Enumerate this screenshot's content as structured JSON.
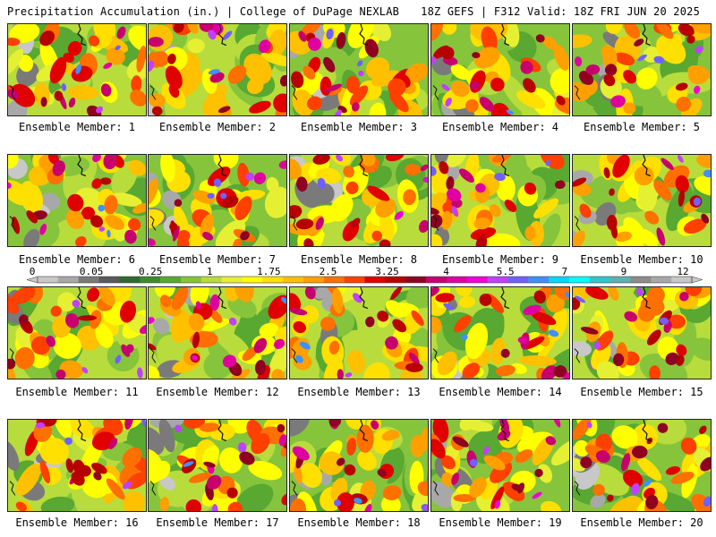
{
  "header": {
    "left": "Precipitation Accumulation (in.) | College of DuPage NEXLAB",
    "right": "18Z GEFS | F312 Valid: 18Z FRI JUN 20 2025"
  },
  "member_label": "Ensemble Member:",
  "members": [
    "1",
    "2",
    "3",
    "4",
    "5",
    "6",
    "7",
    "8",
    "9",
    "10",
    "11",
    "12",
    "13",
    "14",
    "15",
    "16",
    "17",
    "18",
    "19",
    "20"
  ],
  "colorbar": {
    "tick_labels": [
      "0",
      "0.05",
      "0.25",
      "1",
      "1.75",
      "2.5",
      "3.25",
      "4",
      "5.5",
      "7",
      "9",
      "12"
    ],
    "colors": [
      "#c8c8c8",
      "#a8a8a8",
      "#7a7a7a",
      "#5a5a5a",
      "#2f6b2f",
      "#3f8a2f",
      "#58a832",
      "#86c43c",
      "#b8dc3c",
      "#e6f032",
      "#ffff00",
      "#ffe000",
      "#ffc000",
      "#ffa000",
      "#ff7000",
      "#ff4000",
      "#e00000",
      "#b80000",
      "#900020",
      "#c8006e",
      "#e000a0",
      "#f000d8",
      "#c040ff",
      "#7060ff",
      "#4090ff",
      "#00d8ff",
      "#00ffff",
      "#30c8c8",
      "#60b0b0",
      "#8c8c8c",
      "#a8a8a8",
      "#c8c8c8"
    ]
  }
}
